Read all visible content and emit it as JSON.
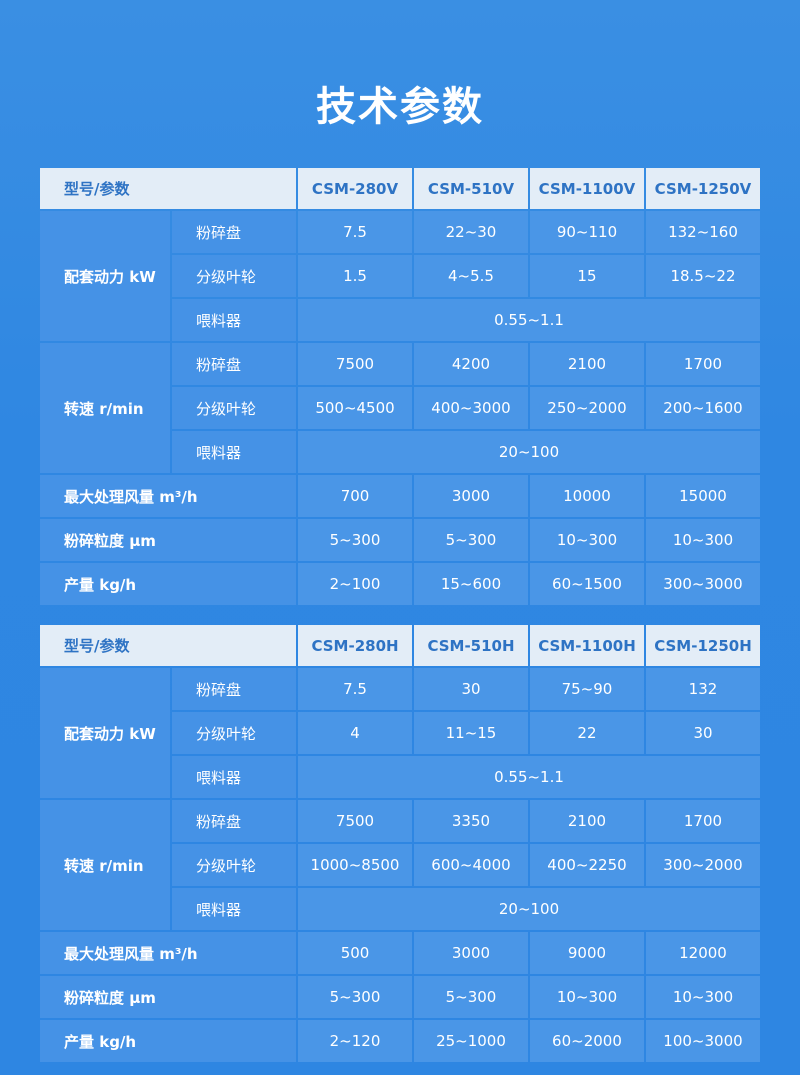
{
  "title": "技术参数",
  "tables": [
    {
      "header_label": "型号/参数",
      "models": [
        "CSM-280V",
        "CSM-510V",
        "CSM-1100V",
        "CSM-1250V"
      ],
      "groups": [
        {
          "label": "配套动力 kW",
          "rows": [
            {
              "sub": "粉碎盘",
              "values": [
                "7.5",
                "22~30",
                "90~110",
                "132~160"
              ]
            },
            {
              "sub": "分级叶轮",
              "values": [
                "1.5",
                "4~5.5",
                "15",
                "18.5~22"
              ]
            },
            {
              "sub": "喂料器",
              "span": "0.55~1.1"
            }
          ]
        },
        {
          "label": "转速 r/min",
          "rows": [
            {
              "sub": "粉碎盘",
              "values": [
                "7500",
                "4200",
                "2100",
                "1700"
              ]
            },
            {
              "sub": "分级叶轮",
              "values": [
                "500~4500",
                "400~3000",
                "250~2000",
                "200~1600"
              ]
            },
            {
              "sub": "喂料器",
              "span": "20~100"
            }
          ]
        }
      ],
      "rows": [
        {
          "label": "最大处理风量 m³/h",
          "values": [
            "700",
            "3000",
            "10000",
            "15000"
          ]
        },
        {
          "label": "粉碎粒度 μm",
          "values": [
            "5~300",
            "5~300",
            "10~300",
            "10~300"
          ]
        },
        {
          "label": "产量 kg/h",
          "values": [
            "2~100",
            "15~600",
            "60~1500",
            "300~3000"
          ]
        }
      ]
    },
    {
      "header_label": "型号/参数",
      "models": [
        "CSM-280H",
        "CSM-510H",
        "CSM-1100H",
        "CSM-1250H"
      ],
      "groups": [
        {
          "label": "配套动力 kW",
          "rows": [
            {
              "sub": "粉碎盘",
              "values": [
                "7.5",
                "30",
                "75~90",
                "132"
              ]
            },
            {
              "sub": "分级叶轮",
              "values": [
                "4",
                "11~15",
                "22",
                "30"
              ]
            },
            {
              "sub": "喂料器",
              "span": "0.55~1.1"
            }
          ]
        },
        {
          "label": "转速 r/min",
          "rows": [
            {
              "sub": "粉碎盘",
              "values": [
                "7500",
                "3350",
                "2100",
                "1700"
              ]
            },
            {
              "sub": "分级叶轮",
              "values": [
                "1000~8500",
                "600~4000",
                "400~2250",
                "300~2000"
              ]
            },
            {
              "sub": "喂料器",
              "span": "20~100"
            }
          ]
        }
      ],
      "rows": [
        {
          "label": "最大处理风量 m³/h",
          "values": [
            "500",
            "3000",
            "9000",
            "12000"
          ]
        },
        {
          "label": "粉碎粒度 μm",
          "values": [
            "5~300",
            "5~300",
            "10~300",
            "10~300"
          ]
        },
        {
          "label": "产量 kg/h",
          "values": [
            "2~120",
            "25~1000",
            "60~2000",
            "100~3000"
          ]
        }
      ]
    }
  ]
}
